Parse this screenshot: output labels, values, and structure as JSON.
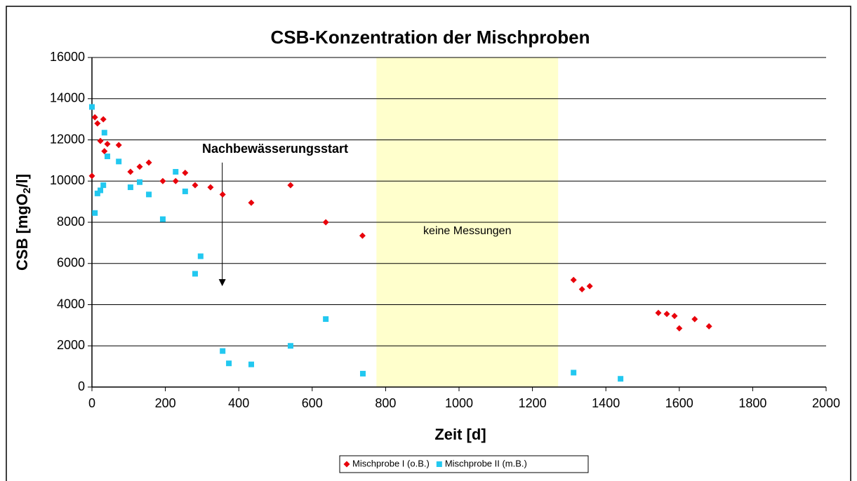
{
  "chart_data": {
    "type": "scatter",
    "title": "CSB-Konzentration der Mischproben",
    "xlabel": "Zeit [d]",
    "ylabel": {
      "text": "CSB [mgO",
      "sub": "2",
      "tail": "/l]"
    },
    "xlim": [
      0,
      2000
    ],
    "xticks": [
      0,
      200,
      400,
      600,
      800,
      1000,
      1200,
      1400,
      1600,
      1800,
      2000
    ],
    "ylim": [
      0,
      16000
    ],
    "yticks": [
      0,
      2000,
      4000,
      6000,
      8000,
      10000,
      12000,
      14000,
      16000
    ],
    "grid": true,
    "legend": "bottom",
    "shaded_region": {
      "x": [
        775,
        1270
      ],
      "label": "keine Messungen",
      "color": "#ffffcc"
    },
    "annotation": {
      "text": "Nachbewässerungsstart",
      "x": 355,
      "y_start": 10900,
      "y_end": 4900
    },
    "series": [
      {
        "name": "Mischprobe I (o.B.)",
        "color": "#e8000b",
        "marker": "diamond",
        "x": [
          0,
          8,
          15,
          23,
          31,
          34,
          42,
          73,
          105,
          130,
          155,
          193,
          228,
          254,
          281,
          323,
          356,
          434,
          541,
          637,
          737,
          1312,
          1335,
          1356,
          1543,
          1566,
          1587,
          1600,
          1642,
          1681
        ],
        "values": [
          10250,
          13100,
          12800,
          11950,
          13000,
          11450,
          11800,
          11750,
          10450,
          10700,
          10900,
          10000,
          10000,
          10400,
          9800,
          9700,
          9350,
          8950,
          9800,
          8000,
          7350,
          5200,
          4750,
          4900,
          3600,
          3550,
          3450,
          2850,
          3300,
          2950
        ]
      },
      {
        "name": "Mischprobe II (m.B.)",
        "color": "#22c8f0",
        "marker": "square",
        "x": [
          0,
          8,
          15,
          23,
          31,
          34,
          42,
          73,
          105,
          130,
          155,
          193,
          228,
          254,
          281,
          296,
          356,
          373,
          434,
          541,
          637,
          738,
          1312,
          1440
        ],
        "values": [
          13600,
          8450,
          9400,
          9550,
          9800,
          12350,
          11200,
          10950,
          9700,
          9950,
          9350,
          8150,
          10450,
          9500,
          5500,
          6350,
          1750,
          1150,
          1100,
          2000,
          3300,
          650,
          700,
          400
        ]
      }
    ]
  }
}
